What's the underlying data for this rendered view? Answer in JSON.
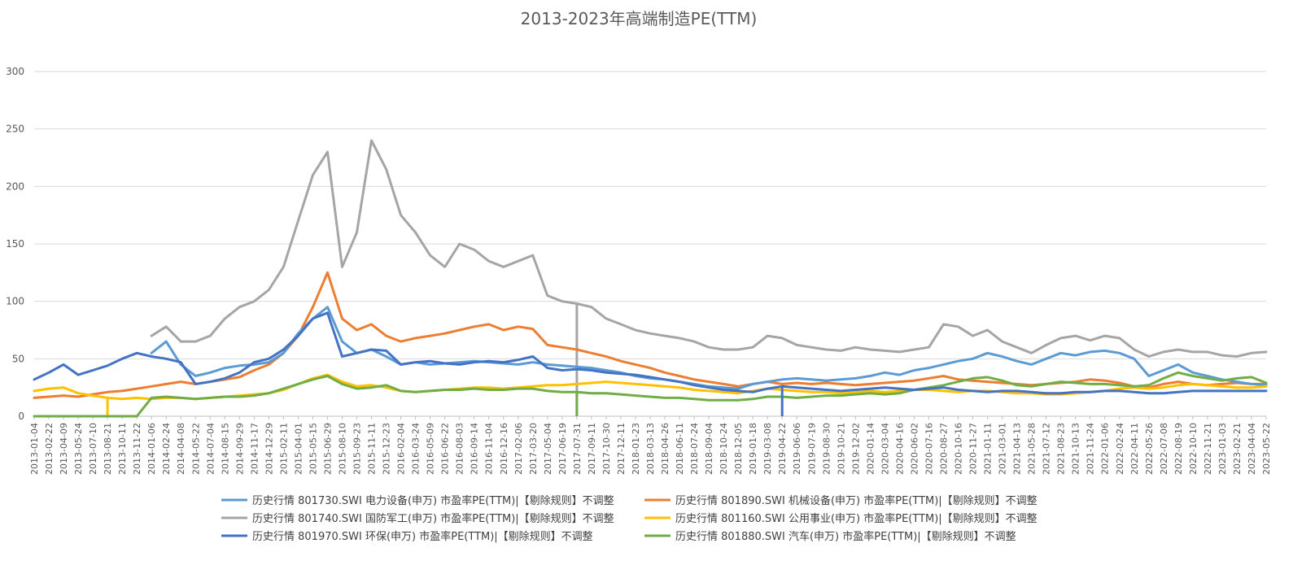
{
  "chart_data": {
    "type": "line",
    "title": "2013-2023年高端制造PE(TTM)",
    "xlabel": "",
    "ylabel": "",
    "ylim": [
      0,
      300
    ],
    "yticks": [
      0,
      50,
      100,
      150,
      200,
      250,
      300
    ],
    "grid": true,
    "legend_position": "bottom",
    "categories": [
      "2013-01-04",
      "2013-02-22",
      "2013-04-09",
      "2013-05-24",
      "2013-07-10",
      "2013-08-21",
      "2013-10-11",
      "2013-11-22",
      "2014-01-06",
      "2014-02-24",
      "2014-04-08",
      "2014-05-22",
      "2014-07-04",
      "2014-08-15",
      "2014-09-29",
      "2014-11-17",
      "2014-12-29",
      "2015-02-11",
      "2015-04-01",
      "2015-05-15",
      "2015-06-29",
      "2015-08-10",
      "2015-09-23",
      "2015-11-11",
      "2015-12-23",
      "2016-02-04",
      "2016-03-24",
      "2016-05-09",
      "2016-06-22",
      "2016-08-03",
      "2016-09-14",
      "2016-11-04",
      "2016-12-16",
      "2017-02-06",
      "2017-03-20",
      "2017-05-04",
      "2017-06-19",
      "2017-07-31",
      "2017-09-11",
      "2017-10-30",
      "2017-12-11",
      "2018-01-23",
      "2018-03-13",
      "2018-04-26",
      "2018-06-11",
      "2018-07-24",
      "2018-09-04",
      "2018-10-24",
      "2018-12-05",
      "2019-01-18",
      "2019-03-08",
      "2019-04-22",
      "2019-06-06",
      "2019-07-19",
      "2019-08-30",
      "2019-10-21",
      "2019-12-02",
      "2020-01-14",
      "2020-03-04",
      "2020-04-16",
      "2020-06-02",
      "2020-07-16",
      "2020-08-27",
      "2020-10-16",
      "2020-11-27",
      "2021-01-11",
      "2021-03-01",
      "2021-04-13",
      "2021-05-28",
      "2021-07-12",
      "2021-08-23",
      "2021-10-13",
      "2021-11-24",
      "2022-01-06",
      "2022-02-24",
      "2022-04-11",
      "2022-05-26",
      "2022-07-08",
      "2022-08-19",
      "2022-10-10",
      "2022-11-21",
      "2023-01-03",
      "2023-02-21",
      "2023-04-04",
      "2023-05-22"
    ],
    "series": [
      {
        "name": "历史行情 801730.SWI 电力设备(申万) 市盈率PE(TTM)|【剔除规则】不调整",
        "color": "#5B9BD5",
        "values": [
          null,
          null,
          null,
          null,
          null,
          null,
          null,
          null,
          55,
          65,
          45,
          35,
          38,
          42,
          44,
          45,
          47,
          55,
          72,
          85,
          95,
          65,
          55,
          58,
          52,
          45,
          47,
          45,
          46,
          47,
          48,
          47,
          46,
          45,
          47,
          45,
          44,
          43,
          42,
          40,
          38,
          35,
          33,
          32,
          30,
          28,
          26,
          25,
          24,
          28,
          30,
          32,
          33,
          32,
          31,
          32,
          33,
          35,
          38,
          36,
          40,
          42,
          45,
          48,
          50,
          55,
          52,
          48,
          45,
          50,
          55,
          53,
          56,
          57,
          55,
          50,
          35,
          40,
          45,
          38,
          35,
          32,
          30,
          28,
          27
        ],
        "drops": []
      },
      {
        "name": "历史行情 801890.SWI 机械设备(申万) 市盈率PE(TTM)|【剔除规则】不调整",
        "color": "#ED7D31",
        "values": [
          16,
          17,
          18,
          17,
          19,
          21,
          22,
          24,
          26,
          28,
          30,
          28,
          30,
          32,
          34,
          40,
          45,
          55,
          70,
          95,
          125,
          85,
          75,
          80,
          70,
          65,
          68,
          70,
          72,
          75,
          78,
          80,
          75,
          78,
          76,
          62,
          60,
          58,
          55,
          52,
          48,
          45,
          42,
          38,
          35,
          32,
          30,
          28,
          26,
          28,
          30,
          28,
          29,
          28,
          29,
          28,
          27,
          28,
          29,
          30,
          31,
          33,
          35,
          32,
          31,
          30,
          29,
          28,
          27,
          28,
          29,
          30,
          32,
          31,
          29,
          26,
          25,
          28,
          30,
          28,
          27,
          28,
          29,
          28,
          28
        ],
        "drops": []
      },
      {
        "name": "历史行情 801740.SWI 国防军工(申万) 市盈率PE(TTM)|【剔除规则】不调整",
        "color": "#A5A5A5",
        "values": [
          null,
          null,
          null,
          null,
          null,
          null,
          null,
          null,
          70,
          78,
          65,
          65,
          70,
          85,
          95,
          100,
          110,
          130,
          170,
          210,
          230,
          130,
          160,
          240,
          215,
          175,
          160,
          140,
          130,
          150,
          145,
          135,
          130,
          135,
          140,
          105,
          100,
          98,
          95,
          85,
          80,
          75,
          72,
          70,
          68,
          65,
          60,
          58,
          58,
          60,
          70,
          68,
          62,
          60,
          58,
          57,
          60,
          58,
          57,
          56,
          58,
          60,
          80,
          78,
          70,
          75,
          65,
          60,
          55,
          62,
          68,
          70,
          66,
          70,
          68,
          58,
          52,
          56,
          58,
          56,
          56,
          53,
          52,
          55,
          56
        ],
        "drops": [
          {
            "at": 37,
            "value": 0
          }
        ]
      },
      {
        "name": "历史行情 801160.SWI 公用事业(申万) 市盈率PE(TTM)|【剔除规则】不调整",
        "color": "#FFC000",
        "values": [
          22,
          24,
          25,
          20,
          18,
          16,
          15,
          16,
          15,
          16,
          16,
          15,
          16,
          17,
          18,
          19,
          20,
          23,
          28,
          33,
          36,
          30,
          26,
          27,
          25,
          22,
          21,
          22,
          23,
          24,
          25,
          25,
          24,
          25,
          26,
          27,
          27,
          28,
          29,
          30,
          29,
          28,
          27,
          26,
          25,
          23,
          22,
          21,
          20,
          22,
          24,
          23,
          22,
          21,
          21,
          20,
          21,
          22,
          21,
          22,
          23,
          23,
          22,
          21,
          22,
          22,
          21,
          20,
          20,
          19,
          19,
          20,
          21,
          22,
          24,
          25,
          24,
          25,
          27,
          28,
          27,
          26,
          25,
          25,
          26
        ],
        "drops": [
          {
            "at": 5,
            "value": 0
          }
        ]
      },
      {
        "name": "历史行情 801970.SWI 环保(申万) 市盈率PE(TTM)|【剔除规则】不调整",
        "color": "#4472C4",
        "values": [
          32,
          38,
          45,
          36,
          40,
          44,
          50,
          55,
          52,
          50,
          47,
          28,
          30,
          33,
          38,
          47,
          50,
          58,
          70,
          85,
          90,
          52,
          55,
          58,
          57,
          45,
          47,
          48,
          46,
          45,
          47,
          48,
          47,
          49,
          52,
          42,
          40,
          41,
          40,
          38,
          37,
          36,
          34,
          32,
          30,
          27,
          25,
          23,
          22,
          21,
          24,
          26,
          25,
          24,
          23,
          22,
          23,
          24,
          25,
          24,
          23,
          24,
          25,
          23,
          22,
          21,
          22,
          22,
          21,
          20,
          20,
          21,
          21,
          22,
          22,
          21,
          20,
          20,
          21,
          22,
          22,
          22,
          22,
          22,
          22
        ],
        "drops": [
          {
            "at": 51,
            "value": 0
          }
        ]
      },
      {
        "name": "历史行情 801880.SWI 汽车(申万) 市盈率PE(TTM)|【剔除规则】不调整",
        "color": "#70AD47",
        "values": [
          0,
          0,
          0,
          0,
          0,
          0,
          0,
          0,
          16,
          17,
          16,
          15,
          16,
          17,
          17,
          18,
          20,
          24,
          28,
          32,
          35,
          28,
          24,
          25,
          27,
          22,
          21,
          22,
          23,
          23,
          24,
          23,
          23,
          24,
          24,
          22,
          21,
          21,
          20,
          20,
          19,
          18,
          17,
          16,
          16,
          15,
          14,
          14,
          14,
          15,
          17,
          17,
          16,
          17,
          18,
          18,
          19,
          20,
          19,
          20,
          23,
          25,
          27,
          30,
          33,
          34,
          31,
          27,
          26,
          28,
          30,
          29,
          28,
          28,
          27,
          26,
          27,
          33,
          38,
          35,
          33,
          31,
          33,
          34,
          29
        ],
        "drops": [
          {
            "at": 37,
            "value": 0
          }
        ]
      }
    ]
  }
}
